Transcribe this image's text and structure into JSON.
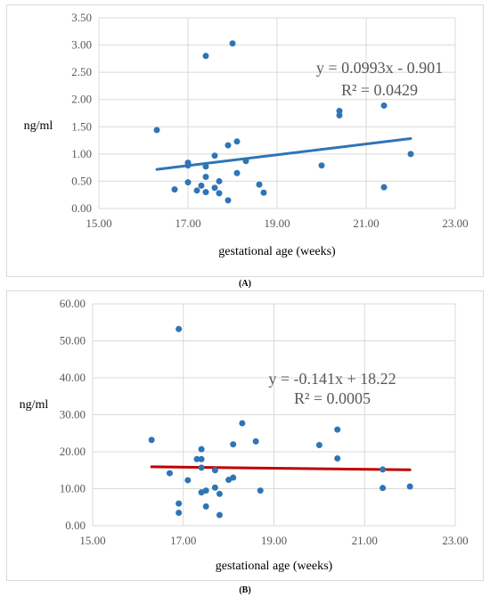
{
  "chart_data": [
    {
      "panel_label": "(A)",
      "type": "scatter",
      "ylabel": "ng/ml",
      "xlabel": "gestational age (weeks)",
      "xlim": [
        15,
        23
      ],
      "ylim": [
        0,
        3.5
      ],
      "x_ticks": [
        "15.00",
        "17.00",
        "19.00",
        "21.00",
        "23.00"
      ],
      "y_ticks": [
        "0.00",
        "0.50",
        "1.00",
        "1.50",
        "2.00",
        "2.50",
        "3.00",
        "3.50"
      ],
      "grid": true,
      "point_color": "#2e75b6",
      "trend_color": "#2e75b6",
      "equation": "y = 0.0993x - 0.901",
      "r_squared": "R² = 0.0429",
      "trendline": {
        "x_start": 16.3,
        "x_end": 22.0,
        "slope": 0.0993,
        "intercept": -0.901
      },
      "points": [
        {
          "x": 16.3,
          "y": 1.44
        },
        {
          "x": 16.7,
          "y": 0.35
        },
        {
          "x": 17.0,
          "y": 0.84
        },
        {
          "x": 17.0,
          "y": 0.79
        },
        {
          "x": 17.0,
          "y": 0.48
        },
        {
          "x": 17.2,
          "y": 0.33
        },
        {
          "x": 17.3,
          "y": 0.42
        },
        {
          "x": 17.4,
          "y": 2.8
        },
        {
          "x": 17.4,
          "y": 0.77
        },
        {
          "x": 17.4,
          "y": 0.58
        },
        {
          "x": 17.4,
          "y": 0.3
        },
        {
          "x": 17.6,
          "y": 0.97
        },
        {
          "x": 17.6,
          "y": 0.38
        },
        {
          "x": 17.7,
          "y": 0.5
        },
        {
          "x": 17.7,
          "y": 0.28
        },
        {
          "x": 17.9,
          "y": 1.16
        },
        {
          "x": 17.9,
          "y": 0.15
        },
        {
          "x": 18.0,
          "y": 3.03
        },
        {
          "x": 18.1,
          "y": 1.23
        },
        {
          "x": 18.1,
          "y": 0.65
        },
        {
          "x": 18.3,
          "y": 0.87
        },
        {
          "x": 18.6,
          "y": 0.44
        },
        {
          "x": 18.7,
          "y": 0.29
        },
        {
          "x": 20.0,
          "y": 0.79
        },
        {
          "x": 20.4,
          "y": 1.79
        },
        {
          "x": 20.4,
          "y": 1.71
        },
        {
          "x": 21.4,
          "y": 1.89
        },
        {
          "x": 21.4,
          "y": 0.39
        },
        {
          "x": 22.0,
          "y": 1.0
        }
      ]
    },
    {
      "panel_label": "(B)",
      "type": "scatter",
      "ylabel": "ng/ml",
      "xlabel": "gestational age (weeks)",
      "xlim": [
        15,
        23
      ],
      "ylim": [
        0,
        60
      ],
      "x_ticks": [
        "15.00",
        "17.00",
        "19.00",
        "21.00",
        "23.00"
      ],
      "y_ticks": [
        "0.00",
        "10.00",
        "20.00",
        "30.00",
        "40.00",
        "50.00",
        "60.00"
      ],
      "grid": true,
      "point_color": "#2e75b6",
      "trend_color": "#c00000",
      "equation": "y = -0.141x + 18.22",
      "r_squared": "R² = 0.0005",
      "trendline": {
        "x_start": 16.3,
        "x_end": 22.0,
        "slope": -0.141,
        "intercept": 18.22
      },
      "points": [
        {
          "x": 16.3,
          "y": 23.2
        },
        {
          "x": 16.7,
          "y": 14.2
        },
        {
          "x": 16.9,
          "y": 53.2
        },
        {
          "x": 16.9,
          "y": 6.0
        },
        {
          "x": 16.9,
          "y": 3.5
        },
        {
          "x": 17.1,
          "y": 12.3
        },
        {
          "x": 17.3,
          "y": 18.0
        },
        {
          "x": 17.4,
          "y": 20.7
        },
        {
          "x": 17.4,
          "y": 18.0
        },
        {
          "x": 17.4,
          "y": 15.7
        },
        {
          "x": 17.4,
          "y": 9.0
        },
        {
          "x": 17.5,
          "y": 9.5
        },
        {
          "x": 17.5,
          "y": 5.2
        },
        {
          "x": 17.7,
          "y": 15.0
        },
        {
          "x": 17.7,
          "y": 10.3
        },
        {
          "x": 17.8,
          "y": 8.6
        },
        {
          "x": 17.8,
          "y": 2.9
        },
        {
          "x": 18.0,
          "y": 12.4
        },
        {
          "x": 18.1,
          "y": 22.0
        },
        {
          "x": 18.1,
          "y": 13.0
        },
        {
          "x": 18.3,
          "y": 27.7
        },
        {
          "x": 18.6,
          "y": 22.8
        },
        {
          "x": 18.7,
          "y": 9.5
        },
        {
          "x": 20.0,
          "y": 21.8
        },
        {
          "x": 20.4,
          "y": 26.0
        },
        {
          "x": 20.4,
          "y": 18.2
        },
        {
          "x": 21.4,
          "y": 15.2
        },
        {
          "x": 21.4,
          "y": 10.2
        },
        {
          "x": 22.0,
          "y": 10.6
        }
      ]
    }
  ]
}
